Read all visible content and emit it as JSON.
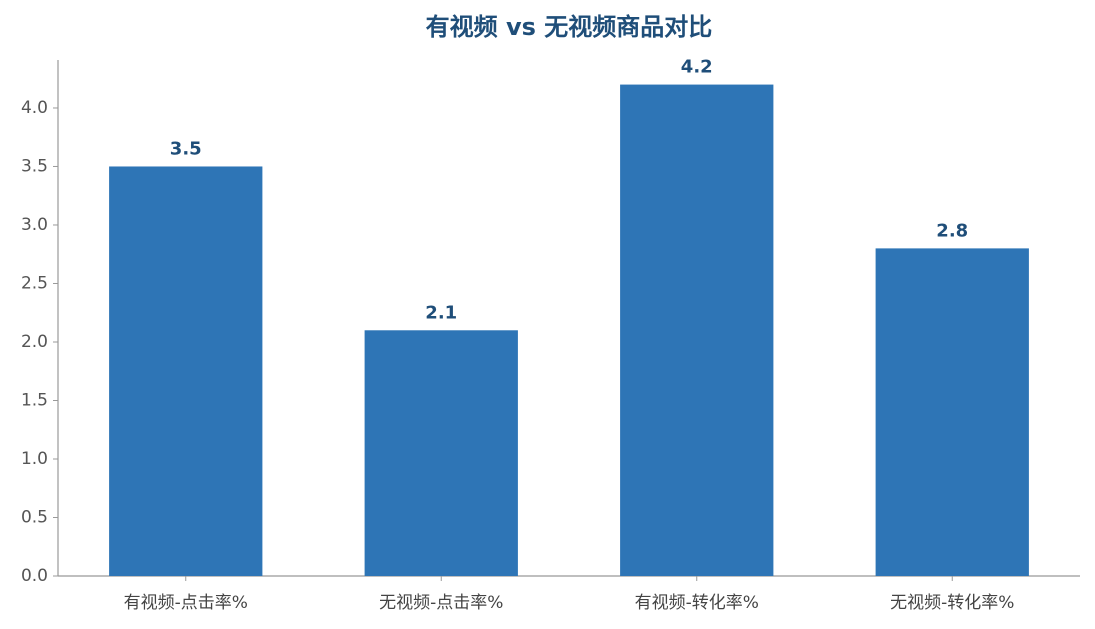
{
  "chart_data": {
    "type": "bar",
    "title": "有视频 vs 无视频商品对比",
    "categories": [
      "有视频-点击率%",
      "无视频-点击率%",
      "有视频-转化率%",
      "无视频-转化率%"
    ],
    "values": [
      3.5,
      2.1,
      4.2,
      2.8
    ],
    "color": "#2e75b6",
    "ylim": [
      0,
      4.41
    ],
    "yticks": [
      {
        "value": 0,
        "label": "0.0"
      },
      0.5,
      {
        "value": 1,
        "label": "1.0"
      },
      1.5,
      {
        "value": 2,
        "label": "2.0"
      },
      2.5,
      {
        "value": 3,
        "label": "3.0"
      },
      3.5,
      {
        "value": 4,
        "label": "4.0"
      }
    ],
    "grid": false
  }
}
